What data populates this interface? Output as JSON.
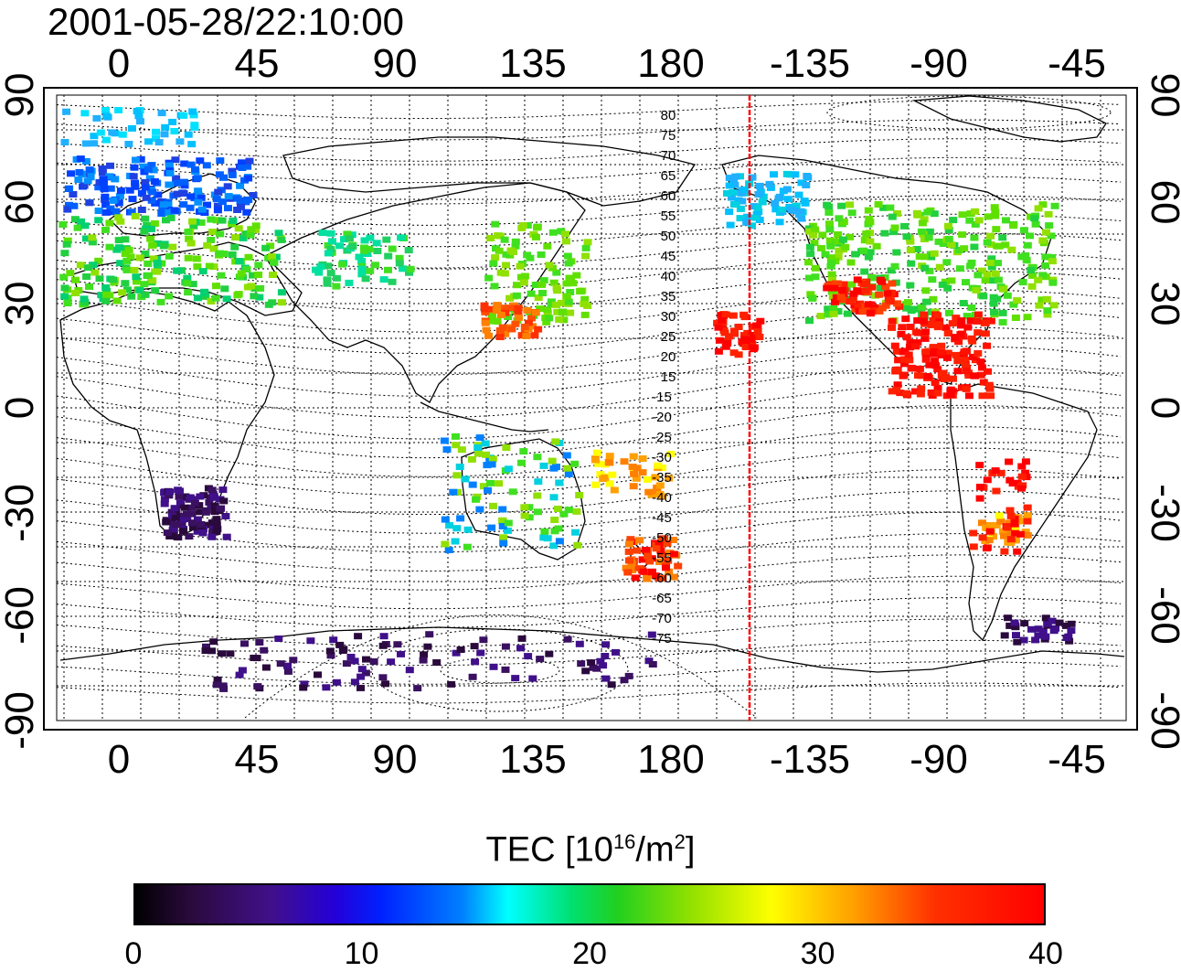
{
  "title": "2001-05-28/22:10:00",
  "map": {
    "lon_ticks_top": [
      "0",
      "45",
      "90",
      "135",
      "180",
      "-135",
      "-90",
      "-45"
    ],
    "lon_ticks_bottom": [
      "0",
      "45",
      "90",
      "135",
      "180",
      "-135",
      "-90",
      "-45"
    ],
    "lat_ticks_left": [
      "90",
      "60",
      "30",
      "0",
      "-30",
      "-60",
      "-90"
    ],
    "lat_ticks_right": [
      "90",
      "60",
      "30",
      "0",
      "-30",
      "-60",
      "-90"
    ],
    "contour_labels": [
      "80",
      "75",
      "70",
      "65",
      "60",
      "55",
      "50",
      "45",
      "40",
      "35",
      "30",
      "25",
      "20",
      "15",
      "-15",
      "-20",
      "-25",
      "-30",
      "-35",
      "-40",
      "-45",
      "-50",
      "-55",
      "-60",
      "-65",
      "-70",
      "-75"
    ],
    "terminator_color": "#ff0000"
  },
  "colorbar": {
    "label": "TEC  [10",
    "label_exp1": "16",
    "label_mid": "/m",
    "label_exp2": "2",
    "label_end": "]",
    "ticks": [
      "0",
      "10",
      "20",
      "30",
      "40"
    ],
    "range": [
      0,
      40
    ]
  }
}
